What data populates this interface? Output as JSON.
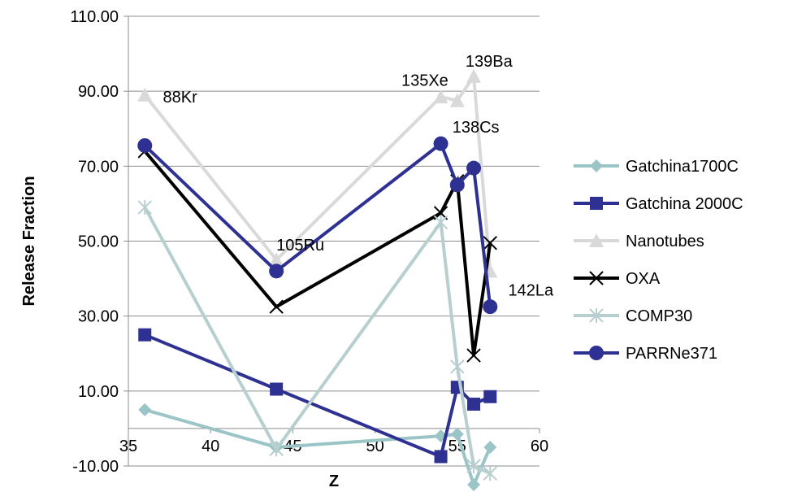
{
  "chart_data": {
    "type": "line",
    "title": "",
    "xlabel": "Z",
    "ylabel": "Release Fraction",
    "xlim": [
      35,
      60
    ],
    "ylim": [
      -10,
      110
    ],
    "xticks": [
      "35",
      "40",
      "45",
      "50",
      "55",
      "60"
    ],
    "yticks": [
      "-10.00",
      "10.00",
      "30.00",
      "50.00",
      "70.00",
      "90.00",
      "110.00"
    ],
    "grid": "horizontal",
    "legend_position": "right",
    "series": [
      {
        "name": "Gatchina1700C",
        "color": "#9bc4c6",
        "marker": "diamond",
        "points": [
          [
            36,
            5
          ],
          [
            44,
            -5
          ],
          [
            54,
            -2
          ],
          [
            55,
            -1.5
          ],
          [
            56,
            -15
          ],
          [
            57,
            -5
          ]
        ]
      },
      {
        "name": "Gatchina 2000C",
        "color": "#2e3192",
        "marker": "square",
        "points": [
          [
            36,
            25
          ],
          [
            44,
            10.5
          ],
          [
            54,
            -7.5
          ],
          [
            55,
            11
          ],
          [
            56,
            6.5
          ],
          [
            57,
            8.5
          ]
        ]
      },
      {
        "name": "Nanotubes",
        "color": "#d9d9d9",
        "marker": "triangle",
        "points": [
          [
            36,
            89
          ],
          [
            44,
            45
          ],
          [
            54,
            88.5
          ],
          [
            55,
            87.5
          ],
          [
            56,
            94
          ],
          [
            57,
            42
          ]
        ]
      },
      {
        "name": "OXA",
        "color": "#000000",
        "marker": "x",
        "points": [
          [
            36,
            74
          ],
          [
            44,
            32.5
          ],
          [
            54,
            57.5
          ],
          [
            55,
            66
          ],
          [
            56,
            19.5
          ],
          [
            57,
            49.5
          ]
        ]
      },
      {
        "name": "COMP30",
        "color": "#b8cfd0",
        "marker": "star",
        "points": [
          [
            36,
            59
          ],
          [
            44,
            -5.5
          ],
          [
            54,
            55
          ],
          [
            55,
            16.5
          ],
          [
            56,
            -10
          ],
          [
            57,
            -12
          ]
        ]
      },
      {
        "name": "PARRNe371",
        "color": "#2e3192",
        "marker": "circle",
        "points": [
          [
            36,
            75.5
          ],
          [
            44,
            42
          ],
          [
            54,
            76
          ],
          [
            55,
            65
          ],
          [
            56,
            69.5
          ],
          [
            57,
            32.5
          ]
        ]
      }
    ],
    "annotations": [
      {
        "text": "88Kr",
        "x": 37.1,
        "y": 87
      },
      {
        "text": "105Ru",
        "x": 44,
        "y": 47.5
      },
      {
        "text": "135Xe",
        "x": 51.6,
        "y": 91.5
      },
      {
        "text": "139Ba",
        "x": 55.5,
        "y": 96.5
      },
      {
        "text": "138Cs",
        "x": 54.7,
        "y": 79
      },
      {
        "text": "142La",
        "x": 58.1,
        "y": 35.5
      }
    ]
  }
}
